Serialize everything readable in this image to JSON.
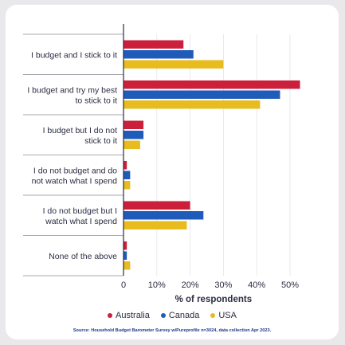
{
  "chart_data": {
    "type": "bar",
    "orientation": "horizontal",
    "categories": [
      [
        "I budget and I stick to it"
      ],
      [
        "I budget and try my best",
        "to stick to it"
      ],
      [
        "I budget but I do not",
        "stick to it"
      ],
      [
        "I do not budget and do",
        "not watch what I spend"
      ],
      [
        "I do not budget but I",
        "watch what I spend"
      ],
      [
        "None of the above"
      ]
    ],
    "series": [
      {
        "name": "Australia",
        "color": "#cc1f3b",
        "values": [
          18,
          53,
          6,
          1,
          20,
          1
        ]
      },
      {
        "name": "Canada",
        "color": "#1f5bb8",
        "values": [
          21,
          47,
          6,
          2,
          24,
          1
        ]
      },
      {
        "name": "USA",
        "color": "#e8bb1e",
        "values": [
          30,
          41,
          5,
          2,
          19,
          2
        ]
      }
    ],
    "xlabel": "% of respondents",
    "ticks": [
      "0",
      "10%",
      "20%",
      "30%",
      "40%",
      "50%"
    ],
    "tick_values": [
      0,
      10,
      20,
      30,
      40,
      50
    ],
    "xlim": [
      0,
      53
    ],
    "legend_position": "bottom",
    "source": "Source: Household Budget Barometer Survey w/Pureprofile n=3024, data collection Apr 2023."
  }
}
